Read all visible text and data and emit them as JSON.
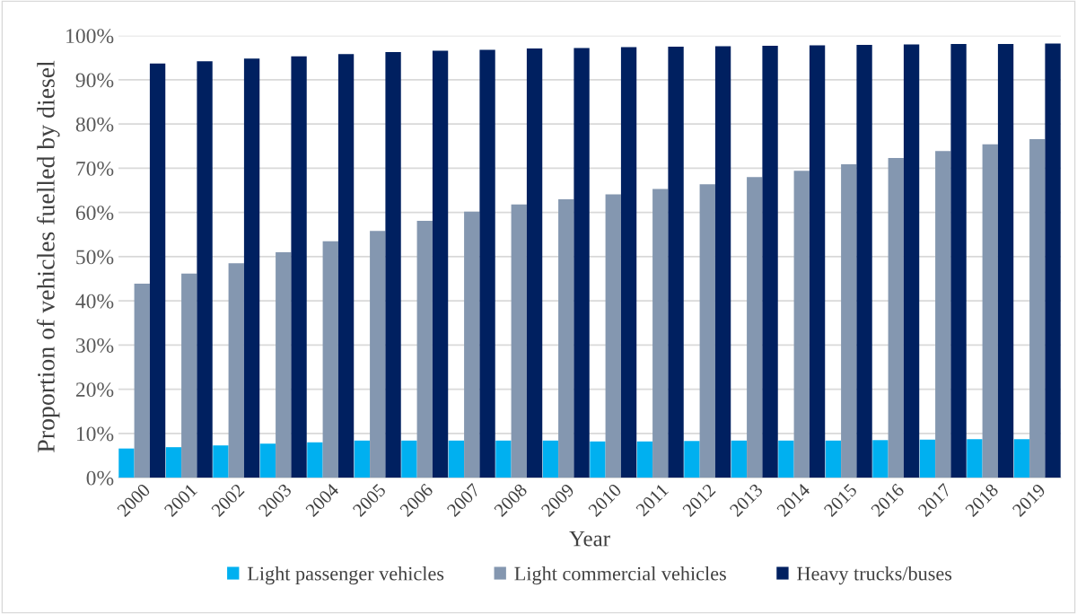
{
  "chart_data": {
    "type": "bar",
    "xlabel": "Year",
    "ylabel": "Proportion of vehicles fuelled by diesel",
    "categories": [
      "2000",
      "2001",
      "2002",
      "2003",
      "2004",
      "2005",
      "2006",
      "2007",
      "2008",
      "2009",
      "2010",
      "2011",
      "2012",
      "2013",
      "2014",
      "2015",
      "2016",
      "2017",
      "2018",
      "2019"
    ],
    "series": [
      {
        "name": "Light passenger vehicles",
        "color": "#00b0f0",
        "values": [
          6.6,
          6.9,
          7.3,
          7.7,
          8.0,
          8.4,
          8.4,
          8.4,
          8.4,
          8.4,
          8.2,
          8.2,
          8.3,
          8.4,
          8.4,
          8.4,
          8.5,
          8.6,
          8.7,
          8.7
        ]
      },
      {
        "name": "Light commercial vehicles",
        "color": "#8497b0",
        "values": [
          43.9,
          46.2,
          48.5,
          51.0,
          53.5,
          55.8,
          58.1,
          60.2,
          61.8,
          63.0,
          64.1,
          65.3,
          66.4,
          68.0,
          69.4,
          70.9,
          72.3,
          73.9,
          75.4,
          76.6
        ]
      },
      {
        "name": "Heavy trucks/buses",
        "color": "#002060",
        "values": [
          93.7,
          94.2,
          94.8,
          95.3,
          95.8,
          96.3,
          96.6,
          96.8,
          97.1,
          97.2,
          97.4,
          97.5,
          97.6,
          97.7,
          97.8,
          97.9,
          98.0,
          98.1,
          98.1,
          98.2
        ]
      }
    ],
    "ylim": [
      0,
      100
    ],
    "yticks": [
      {
        "value": 0,
        "label": "0%"
      },
      {
        "value": 10,
        "label": "10%"
      },
      {
        "value": 20,
        "label": "20%"
      },
      {
        "value": 30,
        "label": "30%"
      },
      {
        "value": 40,
        "label": "40%"
      },
      {
        "value": 50,
        "label": "50%"
      },
      {
        "value": 60,
        "label": "60%"
      },
      {
        "value": 70,
        "label": "70%"
      },
      {
        "value": 80,
        "label": "80%"
      },
      {
        "value": 90,
        "label": "90%"
      },
      {
        "value": 100,
        "label": "100%"
      }
    ],
    "grid": "y",
    "legend": "bottom"
  }
}
